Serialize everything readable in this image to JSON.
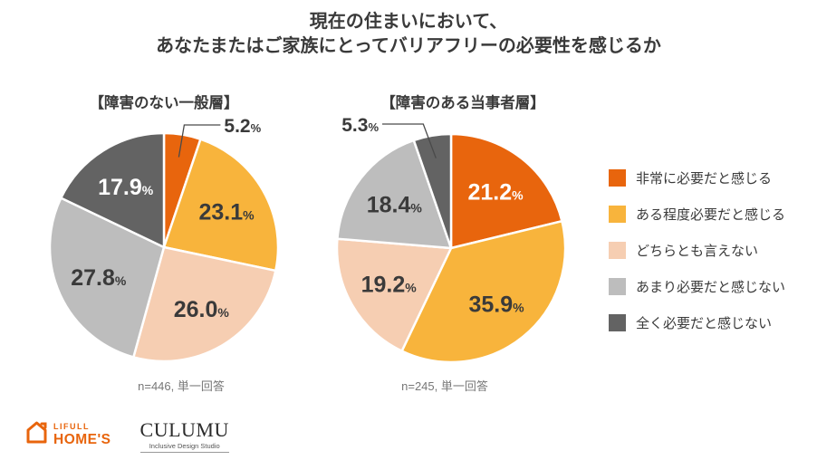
{
  "title": {
    "line1": "現在の住まいにおいて、",
    "line2": "あなたまたはご家族にとってバリアフリーの必要性を感じるか"
  },
  "colors": {
    "strong_need": "#E8650D",
    "some_need": "#F8B43C",
    "neutral": "#F6CEB2",
    "little_need": "#BDBDBD",
    "no_need": "#636363",
    "text_dark": "#3a3a3a",
    "text_white": "#ffffff",
    "leader_line": "#4a4a4a"
  },
  "legend": {
    "position": "right",
    "items": [
      {
        "label": "非常に必要だと感じる",
        "color": "#E8650D"
      },
      {
        "label": "ある程度必要だと感じる",
        "color": "#F8B43C"
      },
      {
        "label": "どちらとも言えない",
        "color": "#F6CEB2"
      },
      {
        "label": "あまり必要だと感じない",
        "color": "#BDBDBD"
      },
      {
        "label": "全く必要だと感じない",
        "color": "#636363"
      }
    ]
  },
  "chart_data": [
    {
      "type": "pie",
      "title": "【障害のない一般層】",
      "note": "n=446, 単一回答",
      "unit": "%",
      "start_angle_deg": 0,
      "direction": "clockwise",
      "categories": [
        "非常に必要だと感じる",
        "ある程度必要だと感じる",
        "どちらとも言えない",
        "あまり必要だと感じない",
        "全く必要だと感じない"
      ],
      "values": [
        5.2,
        23.1,
        26.0,
        27.8,
        17.9
      ],
      "callout": {
        "index": 0,
        "side": "right",
        "label": "5.2"
      },
      "white_label_indices": [
        4
      ]
    },
    {
      "type": "pie",
      "title": "【障害のある当事者層】",
      "note": "n=245, 単一回答",
      "unit": "%",
      "start_angle_deg": 0,
      "direction": "clockwise",
      "categories": [
        "非常に必要だと感じる",
        "ある程度必要だと感じる",
        "どちらとも言えない",
        "あまり必要だと感じない",
        "全く必要だと感じない"
      ],
      "values": [
        21.2,
        35.9,
        19.2,
        18.4,
        5.3
      ],
      "callout": {
        "index": 4,
        "side": "left",
        "label": "5.3"
      },
      "white_label_indices": [
        0
      ]
    }
  ],
  "footer": {
    "lifull_line1": "LIFULL",
    "lifull_line2": "HOME'S",
    "lifull_color": "#E8650D",
    "culumu_name": "CULUMU",
    "culumu_subtitle": "Inclusive Design Studio"
  }
}
